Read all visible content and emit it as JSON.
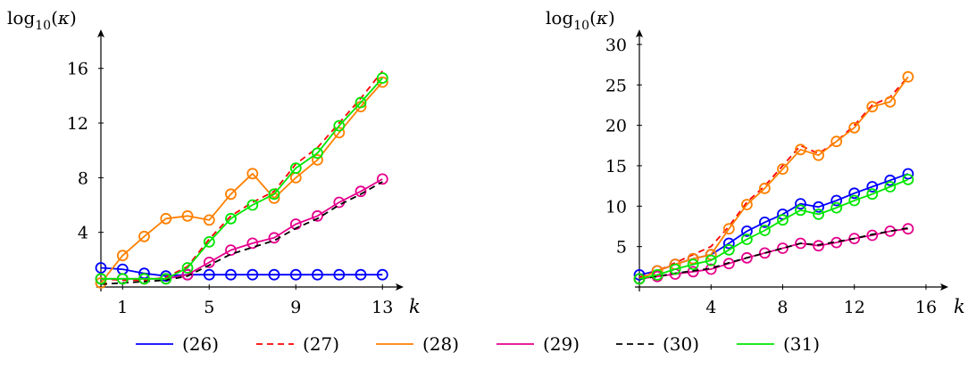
{
  "chart_data": [
    {
      "type": "line",
      "title": "",
      "ylabel": "log10(κ)",
      "xlabel": "k",
      "xlim": [
        0,
        13.5
      ],
      "ylim": [
        0,
        18
      ],
      "xticks": [
        1,
        5,
        9,
        13
      ],
      "yticks": [
        4,
        8,
        12,
        16
      ],
      "grid": false,
      "x": [
        0,
        1,
        2,
        3,
        4,
        5,
        6,
        7,
        8,
        9,
        10,
        11,
        12,
        13
      ],
      "series": [
        {
          "name": "(26)",
          "color": "#0000ff",
          "dash": "solid",
          "marker": true,
          "values": [
            1.4,
            1.3,
            1.0,
            0.8,
            0.9,
            0.9,
            0.9,
            0.9,
            0.9,
            0.9,
            0.9,
            0.9,
            0.9,
            0.9
          ]
        },
        {
          "name": "(27)",
          "color": "#ff0000",
          "dash": "dashed",
          "marker": false,
          "values": [
            0.6,
            0.5,
            0.5,
            0.7,
            1.5,
            3.5,
            5.2,
            6.2,
            7.0,
            9.0,
            10.2,
            12.0,
            13.8,
            15.8
          ]
        },
        {
          "name": "(28)",
          "color": "#ff8000",
          "dash": "solid",
          "marker": true,
          "values": [
            0.3,
            2.3,
            3.7,
            5.0,
            5.2,
            4.9,
            6.8,
            8.3,
            6.5,
            8.0,
            9.3,
            11.3,
            13.2,
            15.0
          ]
        },
        {
          "name": "(29)",
          "color": "#e6008c",
          "dash": "solid",
          "marker": true,
          "values": [
            0.6,
            0.6,
            0.6,
            0.6,
            0.9,
            1.8,
            2.7,
            3.2,
            3.6,
            4.6,
            5.2,
            6.2,
            7.0,
            7.9
          ]
        },
        {
          "name": "(30)",
          "color": "#000000",
          "dash": "dashed",
          "marker": false,
          "values": [
            0.2,
            0.3,
            0.4,
            0.5,
            0.8,
            1.6,
            2.4,
            2.9,
            3.4,
            4.3,
            5.0,
            6.0,
            6.8,
            7.7
          ]
        },
        {
          "name": "(31)",
          "color": "#00e600",
          "dash": "solid",
          "marker": true,
          "values": [
            0.6,
            0.6,
            0.6,
            0.6,
            1.4,
            3.3,
            5.0,
            6.0,
            6.8,
            8.7,
            9.8,
            11.8,
            13.5,
            15.3
          ]
        }
      ]
    },
    {
      "type": "line",
      "title": "",
      "ylabel": "log10(κ)",
      "xlabel": "k",
      "xlim": [
        0,
        16.8
      ],
      "ylim": [
        0,
        30
      ],
      "xticks": [
        4,
        8,
        12,
        16
      ],
      "yticks": [
        5,
        10,
        15,
        20,
        25,
        30
      ],
      "grid": false,
      "x": [
        0,
        1,
        2,
        3,
        4,
        5,
        6,
        7,
        8,
        9,
        10,
        11,
        12,
        13,
        14,
        15
      ],
      "series": [
        {
          "name": "(26)",
          "color": "#0000ff",
          "dash": "solid",
          "marker": true,
          "values": [
            1.5,
            2.0,
            2.8,
            3.5,
            4.0,
            5.4,
            6.9,
            8.0,
            9.0,
            10.3,
            9.9,
            10.7,
            11.6,
            12.4,
            13.2,
            14.0
          ]
        },
        {
          "name": "(27)",
          "color": "#ff0000",
          "dash": "dashed",
          "marker": false,
          "values": [
            1.2,
            2.0,
            3.0,
            4.0,
            5.0,
            7.5,
            10.5,
            12.5,
            15.0,
            17.5,
            16.5,
            18.0,
            20.0,
            22.5,
            23.5,
            26.0
          ]
        },
        {
          "name": "(28)",
          "color": "#ff8000",
          "dash": "solid",
          "marker": true,
          "values": [
            1.0,
            2.0,
            2.8,
            3.5,
            4.0,
            7.2,
            10.2,
            12.2,
            14.6,
            17.0,
            16.3,
            18.0,
            19.7,
            22.3,
            22.9,
            26.0
          ]
        },
        {
          "name": "(29)",
          "color": "#e6008c",
          "dash": "solid",
          "marker": true,
          "values": [
            1.0,
            1.3,
            1.6,
            1.9,
            2.2,
            2.9,
            3.6,
            4.2,
            4.8,
            5.4,
            5.1,
            5.5,
            6.0,
            6.4,
            6.9,
            7.2
          ]
        },
        {
          "name": "(30)",
          "color": "#000000",
          "dash": "dashed",
          "marker": false,
          "values": [
            1.0,
            1.3,
            1.7,
            2.0,
            2.3,
            3.0,
            3.6,
            4.2,
            4.8,
            5.4,
            5.2,
            5.6,
            6.0,
            6.5,
            6.9,
            7.3
          ]
        },
        {
          "name": "(31)",
          "color": "#00e600",
          "dash": "solid",
          "marker": true,
          "values": [
            1.0,
            1.5,
            2.2,
            2.8,
            3.3,
            4.6,
            5.9,
            7.0,
            8.3,
            9.5,
            9.0,
            9.8,
            10.7,
            11.5,
            12.4,
            13.3
          ]
        }
      ]
    }
  ],
  "legend": [
    {
      "label": "(26)",
      "color": "#0000ff",
      "dash": "solid"
    },
    {
      "label": "(27)",
      "color": "#ff0000",
      "dash": "dashed"
    },
    {
      "label": "(28)",
      "color": "#ff8000",
      "dash": "solid"
    },
    {
      "label": "(29)",
      "color": "#e6008c",
      "dash": "solid"
    },
    {
      "label": "(30)",
      "color": "#000000",
      "dash": "dashed"
    },
    {
      "label": "(31)",
      "color": "#00e600",
      "dash": "solid"
    }
  ]
}
